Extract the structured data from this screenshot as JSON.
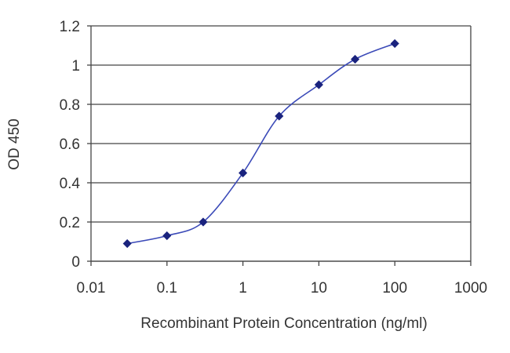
{
  "chart_data": {
    "type": "scatter",
    "title": "",
    "xlabel": "Recombinant Protein Concentration (ng/ml)",
    "ylabel": "OD 450",
    "xscale": "log",
    "xlim": [
      0.01,
      1000
    ],
    "ylim": [
      0,
      1.2
    ],
    "x_ticks": [
      0.01,
      0.1,
      1,
      10,
      100,
      1000
    ],
    "x_tick_labels": [
      "0.01",
      "0.1",
      "1",
      "10",
      "100",
      "1000"
    ],
    "y_ticks": [
      0,
      0.2,
      0.4,
      0.6,
      0.8,
      1,
      1.2
    ],
    "y_tick_labels": [
      "0",
      "0.2",
      "0.4",
      "0.6",
      "0.8",
      "1",
      "1.2"
    ],
    "grid": "horizontal",
    "legend": "none",
    "series": [
      {
        "x": [
          0.03,
          0.1,
          0.3,
          1,
          3,
          10,
          30,
          100
        ],
        "y": [
          0.09,
          0.13,
          0.2,
          0.45,
          0.74,
          0.9,
          1.03,
          1.11
        ],
        "color": "#1a237e",
        "line": "smooth",
        "marker": "diamond"
      }
    ],
    "colors": {
      "line": "#3b4ab8",
      "marker": "#1a237e",
      "grid": "#444444",
      "axis": "#444444",
      "text": "#333333"
    }
  }
}
